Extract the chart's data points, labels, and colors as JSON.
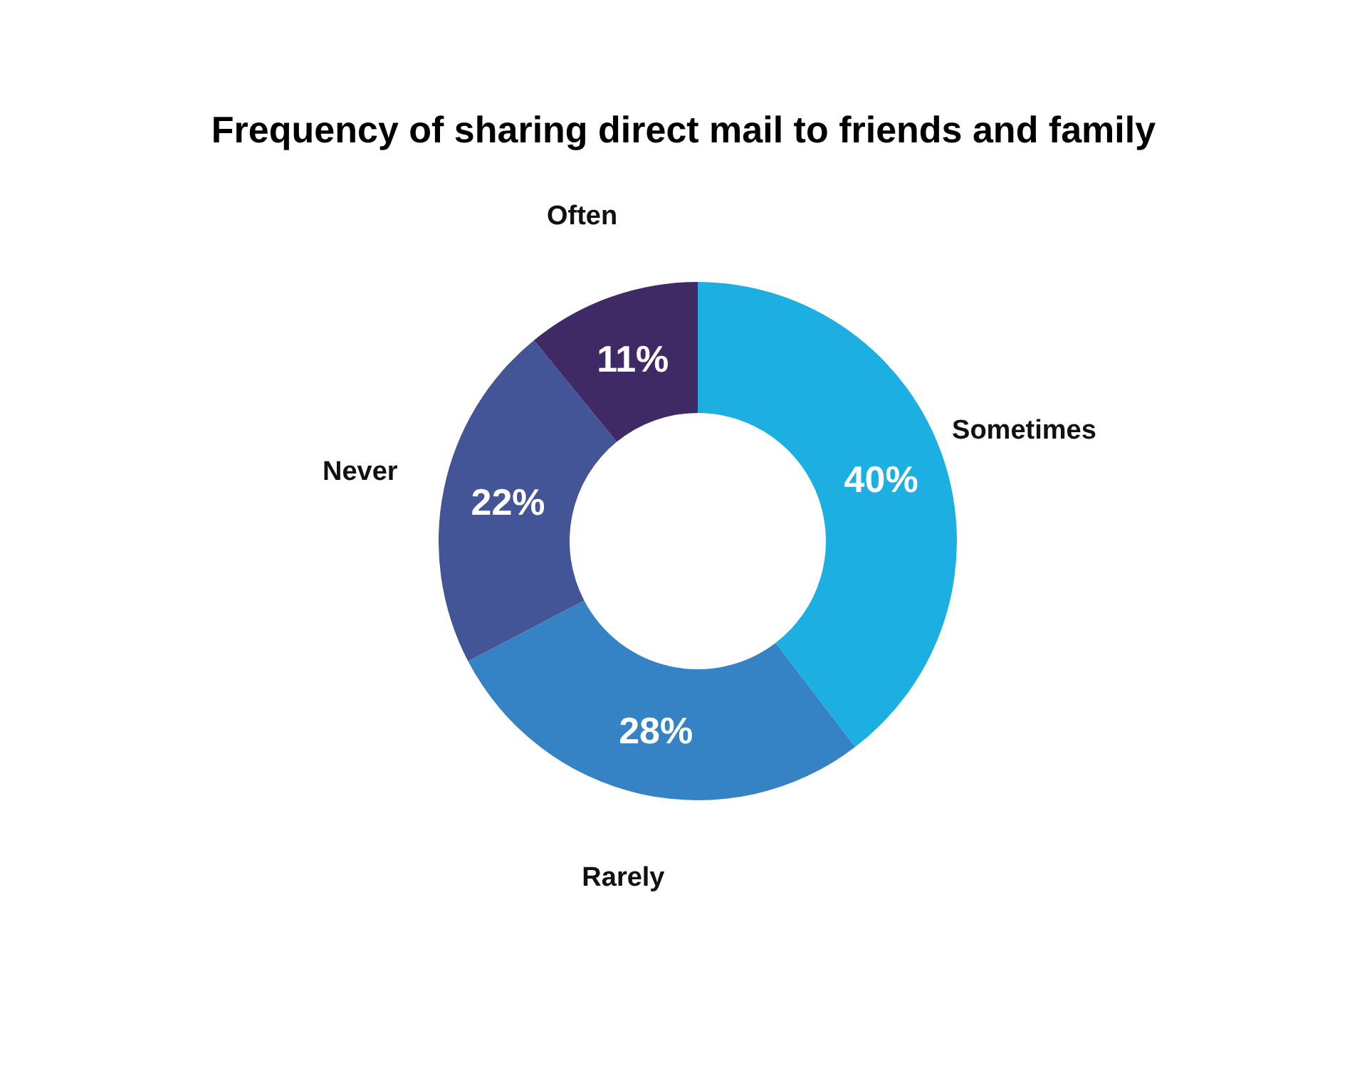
{
  "chart_data": {
    "type": "donut",
    "title": "Frequency of sharing direct mail to friends and family",
    "categories": [
      "Sometimes",
      "Rarely",
      "Never",
      "Often"
    ],
    "values": [
      40,
      28,
      22,
      11
    ],
    "colors": [
      "#1dafe2",
      "#3582c4",
      "#435597",
      "#3f2a66"
    ],
    "value_labels": [
      "40%",
      "28%",
      "22%",
      "11%"
    ],
    "legend": false
  }
}
